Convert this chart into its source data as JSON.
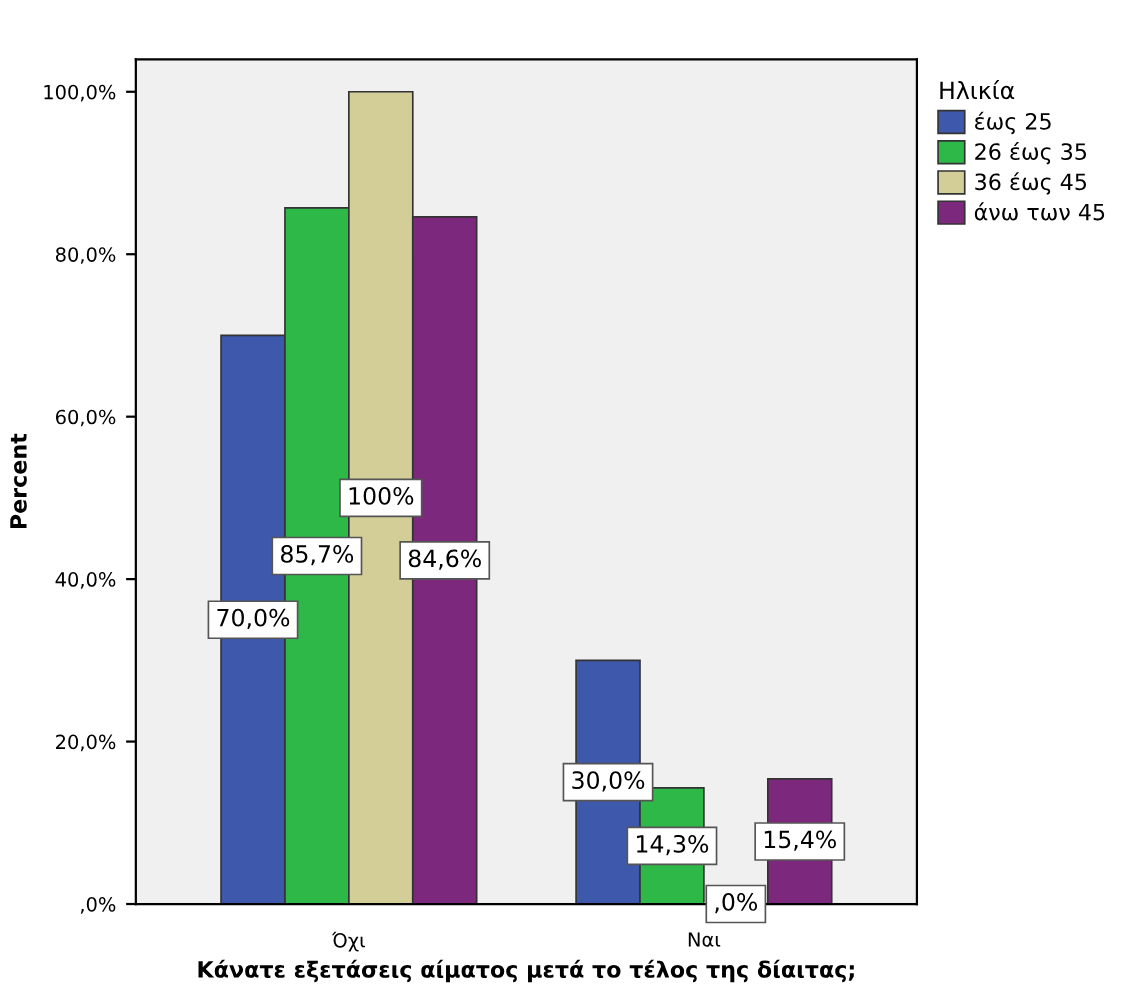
{
  "chart_data": {
    "type": "bar",
    "xlabel": "Κάνατε εξετάσεις αίματος μετά το τέλος της δίαιτας;",
    "ylabel": "Percent",
    "legend_title": "Ηλικία",
    "categories": [
      "Όχι",
      "Ναι"
    ],
    "series": [
      {
        "name": "έως 25",
        "color": "#3e58ac",
        "values": [
          70.0,
          30.0
        ],
        "value_labels": [
          "70,0%",
          "30,0%"
        ]
      },
      {
        "name": "26 έως 35",
        "color": "#2eb848",
        "values": [
          85.7,
          14.3
        ],
        "value_labels": [
          "85,7%",
          "14,3%"
        ]
      },
      {
        "name": "36 έως 45",
        "color": "#d3ce97",
        "values": [
          100.0,
          0.0
        ],
        "value_labels": [
          "100%",
          ",0%"
        ]
      },
      {
        "name": "άνω των 45",
        "color": "#7c287d",
        "values": [
          84.6,
          15.4
        ],
        "value_labels": [
          "84,6%",
          "15,4%"
        ]
      }
    ],
    "ylim": [
      0,
      104
    ],
    "yticks": [
      {
        "value": 0,
        "label": ",0%"
      },
      {
        "value": 20,
        "label": "20,0%"
      },
      {
        "value": 40,
        "label": "40,0%"
      },
      {
        "value": 60,
        "label": "60,0%"
      },
      {
        "value": 80,
        "label": "80,0%"
      },
      {
        "value": 100,
        "label": "100,0%"
      }
    ],
    "grid": false,
    "legend": "right"
  }
}
